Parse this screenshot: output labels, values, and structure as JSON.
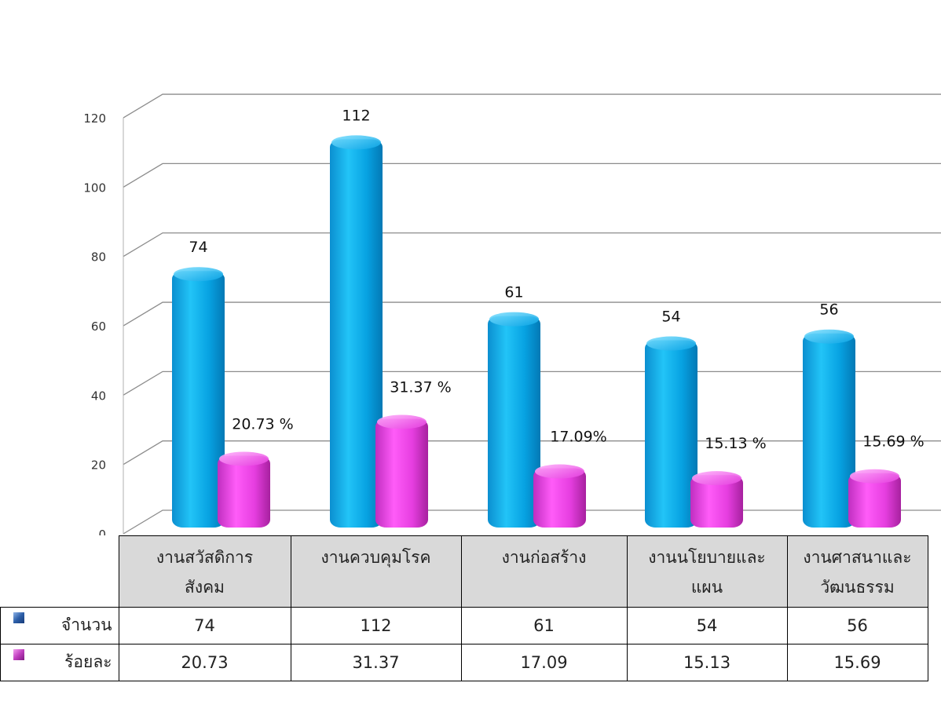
{
  "chart_data": {
    "type": "bar",
    "categories": [
      [
        "งานสวัสดิการ",
        "สังคม"
      ],
      [
        "งานควบคุมโรค"
      ],
      [
        "งานก่อสร้าง"
      ],
      [
        "งานนโยบายและ",
        "แผน"
      ],
      [
        "งานศาสนาและ",
        "วัฒนธรรม"
      ]
    ],
    "series": [
      {
        "name": "จำนวน",
        "values": [
          74,
          112,
          61,
          54,
          56
        ],
        "data_labels": [
          "74",
          "112",
          "61",
          "54",
          "56"
        ],
        "color": "#0aa5e6"
      },
      {
        "name": "ร้อยละ",
        "values": [
          20.73,
          31.37,
          17.09,
          15.13,
          15.69
        ],
        "data_labels": [
          "20.73 %",
          "31.37 %",
          "17.09%",
          "15.13 %",
          "15.69 %"
        ],
        "color": "#e63ee0"
      }
    ],
    "ylim": [
      0,
      120
    ],
    "yticks": [
      "0",
      "20",
      "40",
      "60",
      "80",
      "100",
      "120"
    ],
    "grid": true,
    "title": "",
    "xlabel": "",
    "ylabel": "",
    "data_table": {
      "rows": [
        {
          "label": "จำนวน",
          "cells": [
            "74",
            "112",
            "61",
            "54",
            "56"
          ]
        },
        {
          "label": "ร้อยละ",
          "cells": [
            "20.73",
            "31.37",
            "17.09",
            "15.13",
            "15.69"
          ]
        }
      ]
    }
  }
}
